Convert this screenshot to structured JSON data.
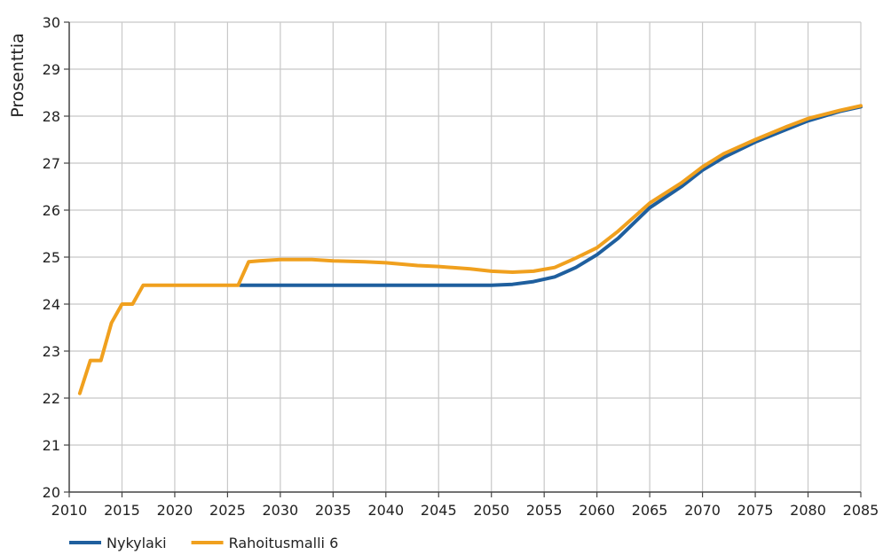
{
  "chart_data": {
    "type": "line",
    "title": "",
    "xlabel": "",
    "ylabel": "Prosenttia",
    "xlim": [
      2010,
      2085
    ],
    "ylim": [
      20,
      30
    ],
    "x_ticks": [
      "2010",
      "2015",
      "2020",
      "2025",
      "2030",
      "2035",
      "2040",
      "2045",
      "2050",
      "2055",
      "2060",
      "2065",
      "2070",
      "2075",
      "2080",
      "2085"
    ],
    "y_ticks": [
      "20",
      "21",
      "22",
      "23",
      "24",
      "25",
      "26",
      "27",
      "28",
      "29",
      "30"
    ],
    "grid": true,
    "legend_position": "bottom-left",
    "series": [
      {
        "name": "Nykylaki",
        "color": "#1f5f9e",
        "points": [
          [
            2026.2,
            24.4
          ],
          [
            2030,
            24.4
          ],
          [
            2035,
            24.4
          ],
          [
            2040,
            24.4
          ],
          [
            2045,
            24.4
          ],
          [
            2050,
            24.4
          ],
          [
            2052,
            24.42
          ],
          [
            2054,
            24.48
          ],
          [
            2056,
            24.58
          ],
          [
            2058,
            24.78
          ],
          [
            2060,
            25.05
          ],
          [
            2062,
            25.4
          ],
          [
            2065,
            26.05
          ],
          [
            2068,
            26.5
          ],
          [
            2070,
            26.85
          ],
          [
            2072,
            27.12
          ],
          [
            2075,
            27.45
          ],
          [
            2078,
            27.72
          ],
          [
            2080,
            27.9
          ],
          [
            2083,
            28.1
          ],
          [
            2085,
            28.2
          ]
        ]
      },
      {
        "name": "Rahoitusmalli 6",
        "color": "#f0a01e",
        "points": [
          [
            2011,
            22.1
          ],
          [
            2012,
            22.8
          ],
          [
            2013,
            22.8
          ],
          [
            2014,
            23.6
          ],
          [
            2015,
            24.0
          ],
          [
            2016,
            24.0
          ],
          [
            2017,
            24.4
          ],
          [
            2020,
            24.4
          ],
          [
            2023,
            24.4
          ],
          [
            2026,
            24.4
          ],
          [
            2027,
            24.9
          ],
          [
            2028,
            24.92
          ],
          [
            2030,
            24.95
          ],
          [
            2033,
            24.95
          ],
          [
            2035,
            24.92
          ],
          [
            2038,
            24.9
          ],
          [
            2040,
            24.88
          ],
          [
            2043,
            24.82
          ],
          [
            2045,
            24.8
          ],
          [
            2048,
            24.75
          ],
          [
            2050,
            24.7
          ],
          [
            2052,
            24.68
          ],
          [
            2054,
            24.7
          ],
          [
            2056,
            24.78
          ],
          [
            2058,
            24.98
          ],
          [
            2060,
            25.2
          ],
          [
            2062,
            25.55
          ],
          [
            2065,
            26.15
          ],
          [
            2068,
            26.58
          ],
          [
            2070,
            26.92
          ],
          [
            2072,
            27.2
          ],
          [
            2075,
            27.5
          ],
          [
            2078,
            27.78
          ],
          [
            2080,
            27.95
          ],
          [
            2083,
            28.12
          ],
          [
            2085,
            28.22
          ]
        ]
      }
    ]
  }
}
